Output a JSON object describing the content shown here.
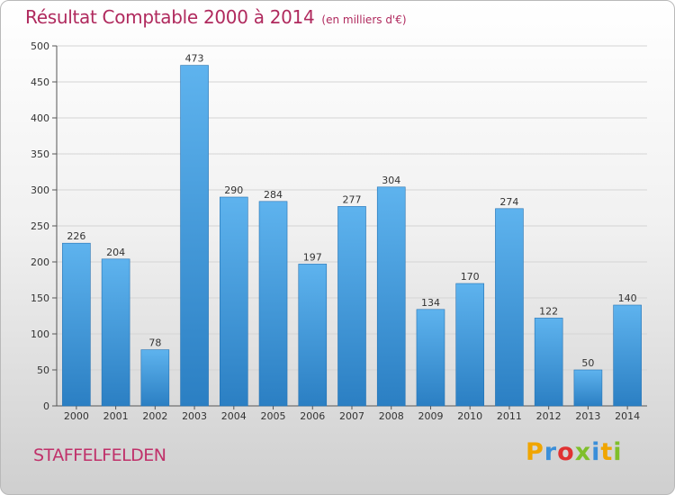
{
  "title": "Résultat Comptable 2000 à 2014",
  "subtitle": "(en milliers d'€)",
  "commune": "STAFFELFELDEN",
  "logo": {
    "letters": [
      "P",
      "r",
      "o",
      "x",
      "i",
      "t",
      "i"
    ],
    "colors": [
      "#f0a500",
      "#3b8fd9",
      "#e03131",
      "#7fbf2a",
      "#3b8fd9",
      "#f0a500",
      "#7fbf2a"
    ]
  },
  "colors": {
    "bar_top": "#5eb3ee",
    "bar_bottom": "#2b7fc3",
    "title": "#b02a5e"
  },
  "chart_data": {
    "type": "bar",
    "title": "Résultat Comptable 2000 à 2014",
    "subtitle": "(en milliers d'€)",
    "categories": [
      "2000",
      "2001",
      "2002",
      "2003",
      "2004",
      "2005",
      "2006",
      "2007",
      "2008",
      "2009",
      "2010",
      "2011",
      "2012",
      "2013",
      "2014"
    ],
    "values": [
      226,
      204,
      78,
      473,
      290,
      284,
      197,
      277,
      304,
      134,
      170,
      274,
      122,
      50,
      140
    ],
    "ylim": [
      0,
      500
    ],
    "yticks": [
      0,
      50,
      100,
      150,
      200,
      250,
      300,
      350,
      400,
      450,
      500
    ],
    "grid": true,
    "legend": "none"
  }
}
